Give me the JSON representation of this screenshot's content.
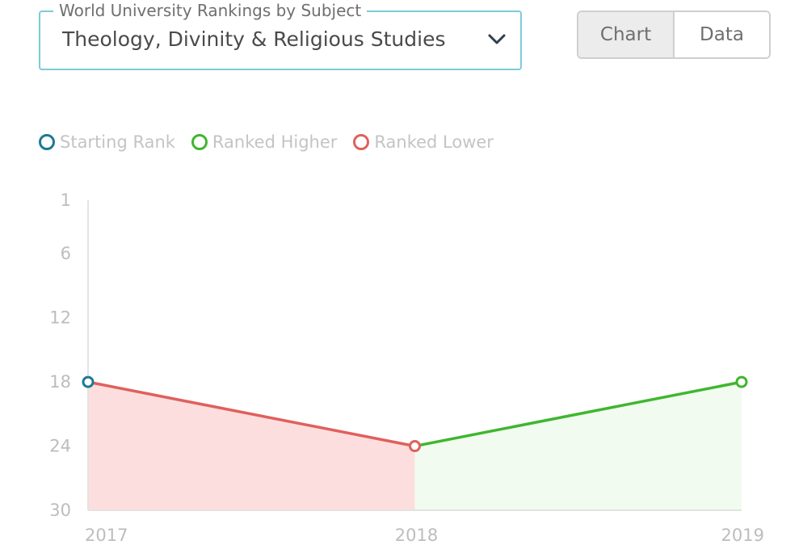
{
  "selector": {
    "legend": "World University Rankings by Subject",
    "value": "Theology, Divinity & Religious Studies",
    "chevron_icon": "chevron-down-icon"
  },
  "view_toggle": {
    "chart_label": "Chart",
    "data_label": "Data",
    "active": "Chart"
  },
  "legend": {
    "items": [
      {
        "label": "Starting Rank",
        "color": "#1c7a94"
      },
      {
        "label": "Ranked Higher",
        "color": "#3fb62f"
      },
      {
        "label": "Ranked Lower",
        "color": "#e0605c"
      }
    ]
  },
  "chart_data": {
    "type": "line",
    "x": [
      "2017",
      "2018",
      "2019"
    ],
    "series": [
      {
        "values": [
          18,
          24,
          18
        ]
      }
    ],
    "y_ticks": [
      1,
      6,
      12,
      18,
      24,
      30
    ],
    "ylim": [
      1,
      30
    ],
    "y_inverted": true,
    "grid": false,
    "colors": {
      "start": "#1c7a94",
      "higher": "#3fb62f",
      "lower": "#e0605c",
      "higher_fill": "#f1fbef",
      "lower_fill": "#fddede",
      "axis": "#e3e3e3"
    }
  }
}
